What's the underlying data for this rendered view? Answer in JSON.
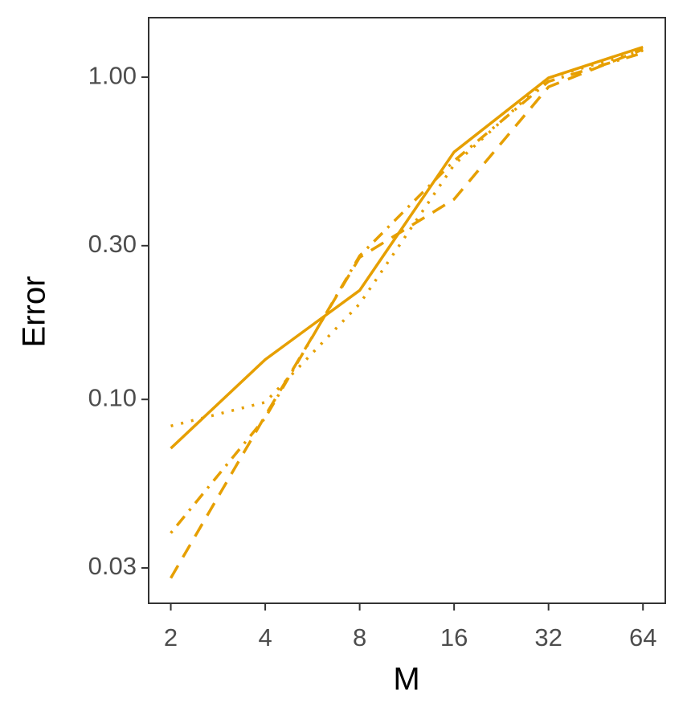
{
  "chart_data": {
    "type": "line",
    "x_label": "M",
    "y_label": "Error",
    "x": [
      2,
      4,
      8,
      16,
      32,
      64
    ],
    "x_log_base": 2,
    "y_log_base": 10,
    "xlim": [
      1.7,
      75.4
    ],
    "xticks": [
      2,
      4,
      8,
      16,
      32,
      64
    ],
    "ylim": [
      0.0233,
      1.53
    ],
    "yticks": [
      {
        "value": 1,
        "label": "1.00"
      },
      {
        "value": 0.3,
        "label": "0.30"
      },
      {
        "value": 0.1,
        "label": "0.10"
      },
      0.03
    ],
    "series": [
      {
        "color": "#e69f00",
        "dash": "solid",
        "values": [
          0.0705,
          0.133,
          0.218,
          0.586,
          0.995,
          1.24
        ]
      },
      {
        "color": "#e69f00",
        "dash": "dashed",
        "values": [
          0.0279,
          0.089,
          0.276,
          0.418,
          0.933,
          1.22
        ]
      },
      {
        "color": "#e69f00",
        "dash": "dotted",
        "values": [
          0.0827,
          0.098,
          0.198,
          0.535,
          0.995,
          1.21
        ]
      },
      {
        "color": "#e69f00",
        "dash": "dotdash",
        "values": [
          0.0385,
          0.0877,
          0.279,
          0.55,
          0.97,
          1.19
        ]
      }
    ]
  }
}
